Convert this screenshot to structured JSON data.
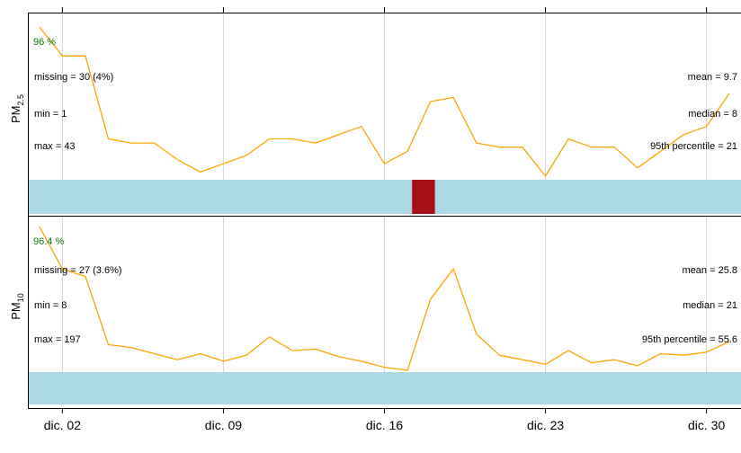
{
  "chart_data": {
    "type": "line",
    "x_tick_labels": [
      "dic. 02",
      "dic. 09",
      "dic. 16",
      "dic. 23",
      "dic. 30"
    ],
    "x_tick_days": [
      2,
      9,
      16,
      23,
      30
    ],
    "x_range_days": [
      1,
      31
    ],
    "grid": "vertical",
    "panels": [
      {
        "ylabel_main": "PM",
        "ylabel_sub": "2.5",
        "coverage": "96 %",
        "left_stats": [
          "missing = 30 (4%)",
          "min = 1",
          "max = 43"
        ],
        "right_stats": [
          "mean = 9.7",
          "median = 8",
          "95th percentile = 21"
        ],
        "series": {
          "name": "PM2.5",
          "x_days": [
            1,
            2,
            3,
            4,
            5,
            6,
            7,
            8,
            9,
            10,
            11,
            12,
            13,
            14,
            15,
            16,
            17,
            18,
            19,
            20,
            21,
            22,
            23,
            24,
            25,
            26,
            27,
            28,
            29,
            30,
            31
          ],
          "values": [
            43,
            36,
            36,
            16,
            15,
            15,
            11,
            8,
            10,
            12,
            16,
            16,
            15,
            17,
            19,
            10,
            13,
            25,
            26,
            15,
            14,
            14,
            7,
            16,
            14,
            14,
            9,
            13,
            17,
            19,
            27
          ]
        },
        "line_color": "#ffa500",
        "availability": [
          {
            "from_day": 0.5,
            "to_day": 17.2,
            "status": "available"
          },
          {
            "from_day": 17.2,
            "to_day": 18.2,
            "status": "missing"
          },
          {
            "from_day": 18.2,
            "to_day": 31.5,
            "status": "available"
          }
        ]
      },
      {
        "ylabel_main": "PM",
        "ylabel_sub": "10",
        "coverage": "96.4 %",
        "left_stats": [
          "missing = 27 (3.6%)",
          "min = 8",
          "max = 197"
        ],
        "right_stats": [
          "mean = 25.8",
          "median = 21",
          "95th percentile = 55.6"
        ],
        "series": {
          "name": "PM10",
          "x_days": [
            1,
            2,
            3,
            4,
            5,
            6,
            7,
            8,
            9,
            10,
            11,
            12,
            13,
            14,
            15,
            16,
            17,
            18,
            19,
            20,
            21,
            22,
            23,
            24,
            25,
            26,
            27,
            28,
            29,
            30,
            31
          ],
          "values": [
            118,
            90,
            85,
            40,
            38,
            34,
            30,
            34,
            29,
            33,
            45,
            36,
            37,
            32,
            29,
            25,
            23,
            70,
            90,
            47,
            33,
            30,
            27,
            36,
            28,
            30,
            26,
            34,
            33,
            35,
            42
          ]
        },
        "line_color": "#ffa500",
        "availability": [
          {
            "from_day": 0.5,
            "to_day": 31.5,
            "status": "available"
          }
        ]
      }
    ],
    "colors": {
      "available": "#add8e6",
      "missing": "#a50f15",
      "coverage_text": "#0b7a0b",
      "grid": "#d3d3d3"
    }
  }
}
